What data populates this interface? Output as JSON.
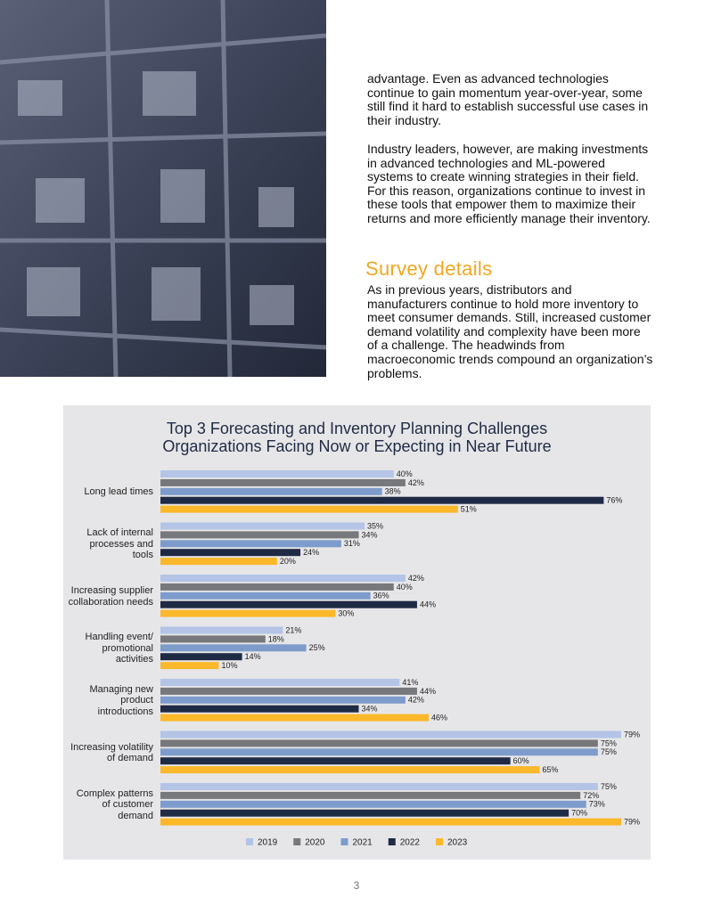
{
  "page": {
    "paragraphs": [
      "advantage. Even as advanced technologies continue to gain momentum year-over-year, some still find it hard to establish successful use cases in their industry.",
      "Industry leaders, however, are making investments in advanced technologies and ML-powered systems to create winning strategies in their field. For this reason, organizations continue to invest in these tools that empower them to maximize their returns and more efficiently manage their inventory."
    ],
    "heading": "Survey details",
    "survey_text": "As in previous years, distributors and manufacturers continue to hold more inventory to meet consumer demands. Still, increased customer demand volatility and complexity have been more of a challenge. The headwinds from macroeconomic trends compound an organization’s problems.",
    "page_number": "3"
  },
  "chart_data": {
    "type": "bar",
    "orientation": "horizontal",
    "title": "Top 3 Forecasting and Inventory Planning Challenges Organizations Facing Now or Expecting in Near Future",
    "categories": [
      "Long lead times",
      "Lack of internal processes and tools",
      "Increasing supplier collaboration needs",
      "Handling event/ promotional activities",
      "Managing new product introductions",
      "Increasing volatility of demand",
      "Complex patterns of customer demand"
    ],
    "series": [
      {
        "name": "2019",
        "color": "#b4c4e6",
        "values": [
          40,
          35,
          42,
          21,
          41,
          79,
          75
        ],
        "value_labels": [
          "40%",
          "35%",
          "42%",
          "21%",
          "41%",
          "79%",
          "75%"
        ]
      },
      {
        "name": "2020",
        "color": "#77787c",
        "values": [
          42,
          34,
          40,
          18,
          44,
          75,
          72
        ],
        "value_labels": [
          "42%",
          "34%",
          "40%",
          "18%",
          "44%",
          "75%",
          "72%"
        ]
      },
      {
        "name": "2021",
        "color": "#7d9ccb",
        "values": [
          38,
          31,
          36,
          25,
          42,
          75,
          73
        ],
        "value_labels": [
          "38%",
          "31%",
          "36%",
          "25%",
          "42%",
          "75%",
          "73%"
        ]
      },
      {
        "name": "2022",
        "color": "#1f2a45",
        "values": [
          76,
          24,
          44,
          14,
          34,
          60,
          70
        ],
        "value_labels": [
          "76%",
          "24%",
          "44%",
          "14%",
          "34%",
          "60%",
          "70%"
        ]
      },
      {
        "name": "2023",
        "color": "#fbb82b",
        "values": [
          51,
          20,
          30,
          10,
          46,
          65,
          79
        ],
        "value_labels": [
          "51%",
          "20%",
          "30%",
          "10%",
          "46%",
          "65%",
          "79%"
        ]
      }
    ],
    "legend": "bottom"
  }
}
